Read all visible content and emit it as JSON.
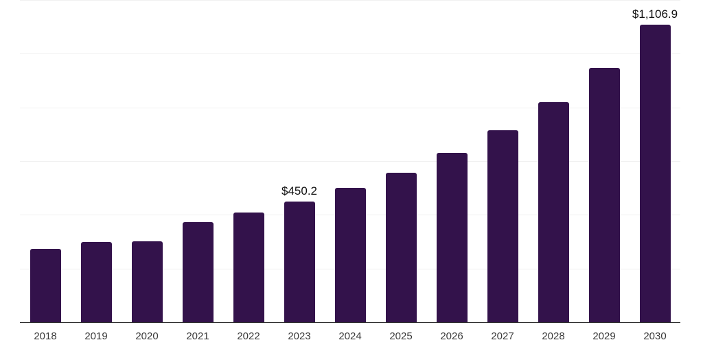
{
  "chart_data": {
    "type": "bar",
    "title": "",
    "xlabel": "",
    "ylabel": "",
    "categories": [
      "2018",
      "2019",
      "2020",
      "2021",
      "2022",
      "2023",
      "2024",
      "2025",
      "2026",
      "2027",
      "2028",
      "2029",
      "2030"
    ],
    "values": [
      274,
      299,
      302,
      374,
      408,
      450.2,
      500,
      557,
      631,
      716,
      820,
      948,
      1106.9
    ],
    "values_precision_note": "only 2023 and 2030 are labeled on-chart; other values estimated from gridlines",
    "data_labels": [
      {
        "index": 5,
        "text": "$450.2"
      },
      {
        "index": 12,
        "text": "$1,106.9"
      }
    ],
    "ylim": [
      0,
      1200
    ],
    "gridline_step": 200,
    "grid": "horizontal",
    "legend": "none",
    "y_axis_tick_labels": "none",
    "colors": {
      "bar": "#33124b",
      "axis": "#2b2b2b",
      "gridline": "#f1f1f1",
      "data_label": "#111111",
      "tick_label": "#3a3a3a",
      "background": "#ffffff"
    }
  }
}
